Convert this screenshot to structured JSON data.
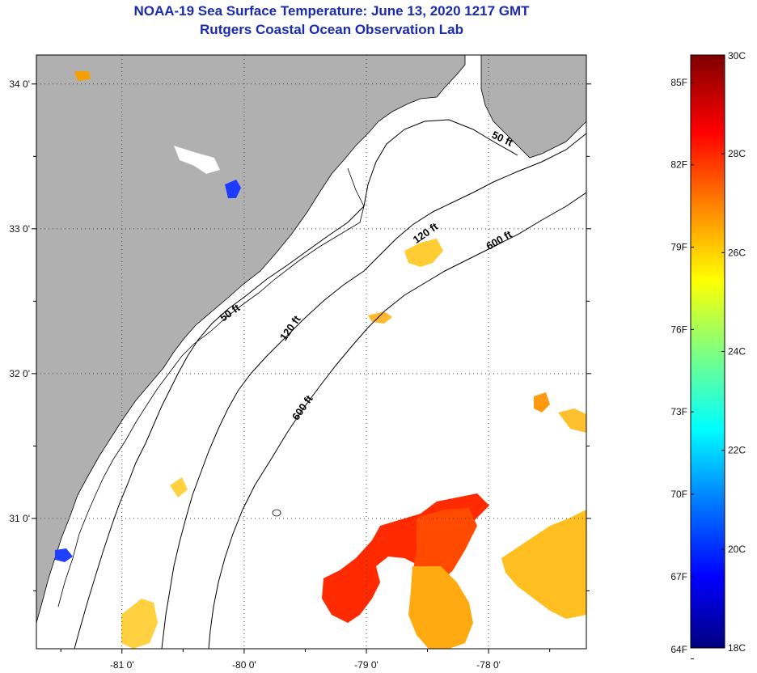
{
  "title": {
    "line1": "NOAA-19 Sea Surface Temperature:  June 13, 2020 1217 GMT",
    "line2": "Rutgers Coastal Ocean Observation Lab"
  },
  "map": {
    "lon_range": [
      -81.7,
      -77.2
    ],
    "lat_range": [
      30.1,
      34.2
    ],
    "lon_ticks": [
      {
        "value": -81,
        "label": "-81 0'"
      },
      {
        "value": -80,
        "label": "-80 0'"
      },
      {
        "value": -79,
        "label": "-79 0'"
      },
      {
        "value": -78,
        "label": "-78 0'"
      }
    ],
    "lat_ticks": [
      {
        "value": 34,
        "label": "34 0'"
      },
      {
        "value": 33,
        "label": "33 0'"
      },
      {
        "value": 32,
        "label": "32 0'"
      },
      {
        "value": 31,
        "label": "31 0'"
      }
    ],
    "land_color": "#b0b0b0",
    "ocean_color": "#ffffff",
    "contour_labels": [
      {
        "text": "50 ft",
        "lon": -77.9,
        "lat": 33.6
      },
      {
        "text": "50 ft",
        "lon": -80.1,
        "lat": 32.4
      },
      {
        "text": "120 ft",
        "lon": -78.5,
        "lat": 32.95
      },
      {
        "text": "120 ft",
        "lon": -79.6,
        "lat": 32.3
      },
      {
        "text": "600 ft",
        "lon": -77.9,
        "lat": 32.9
      },
      {
        "text": "600 ft",
        "lon": -79.5,
        "lat": 31.75
      }
    ]
  },
  "colorbar": {
    "min_c": 18,
    "max_c": 30,
    "celsius_labels": [
      {
        "value": 30,
        "label": "30C"
      },
      {
        "value": 28,
        "label": "28C"
      },
      {
        "value": 26,
        "label": "26C"
      },
      {
        "value": 24,
        "label": "24C"
      },
      {
        "value": 22,
        "label": "22C"
      },
      {
        "value": 20,
        "label": "20C"
      },
      {
        "value": 18,
        "label": "18C"
      }
    ],
    "fahrenheit_labels": [
      {
        "value": 85,
        "label": "85F"
      },
      {
        "value": 82,
        "label": "82F"
      },
      {
        "value": 79,
        "label": "79F"
      },
      {
        "value": 76,
        "label": "76F"
      },
      {
        "value": 73,
        "label": "73F"
      },
      {
        "value": 70,
        "label": "70F"
      },
      {
        "value": 67,
        "label": "67F"
      },
      {
        "value": 64,
        "label": "64F"
      }
    ]
  }
}
